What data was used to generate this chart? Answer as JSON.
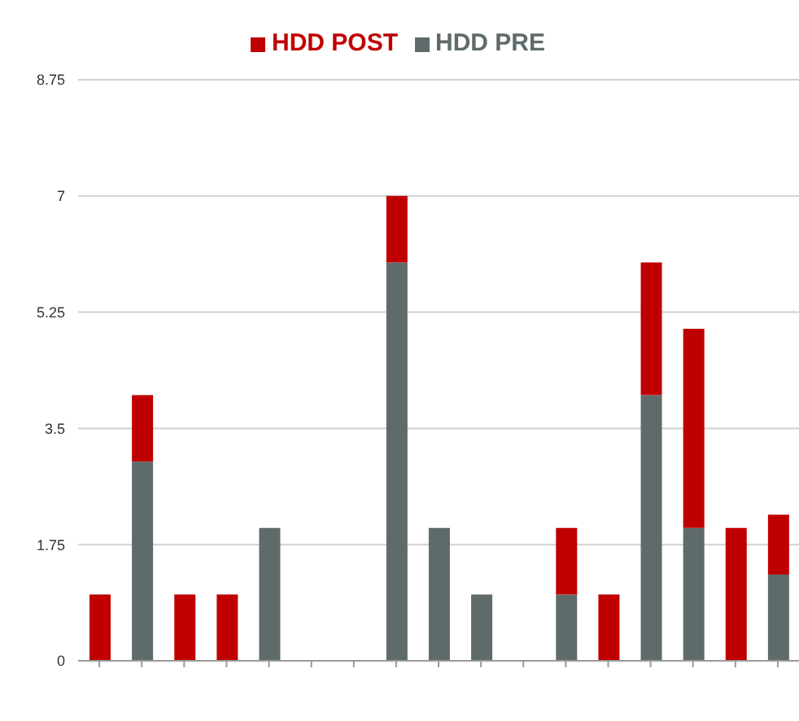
{
  "chart_data": {
    "type": "bar",
    "stacked": true,
    "categories": [
      null,
      null,
      null,
      null,
      null,
      null,
      null,
      null,
      null,
      null,
      null,
      null,
      null,
      null,
      null,
      null,
      null
    ],
    "series": [
      {
        "name": "HDD PRE",
        "color": "#5f6b6b",
        "values": [
          0,
          3,
          0,
          0,
          2,
          0,
          0,
          6,
          2,
          1,
          0,
          1,
          0,
          4,
          2,
          0,
          1.3
        ]
      },
      {
        "name": "HDD POST",
        "color": "#c00000",
        "values": [
          1,
          1,
          1,
          1,
          0,
          0,
          0,
          1,
          0,
          0,
          0,
          1,
          1,
          2,
          3,
          2,
          0.9
        ]
      }
    ],
    "ylim": [
      0,
      8.75
    ],
    "yticks": [
      0,
      1.75,
      3.5,
      5.25,
      7,
      8.75
    ],
    "grid": "y",
    "legend": "top"
  }
}
